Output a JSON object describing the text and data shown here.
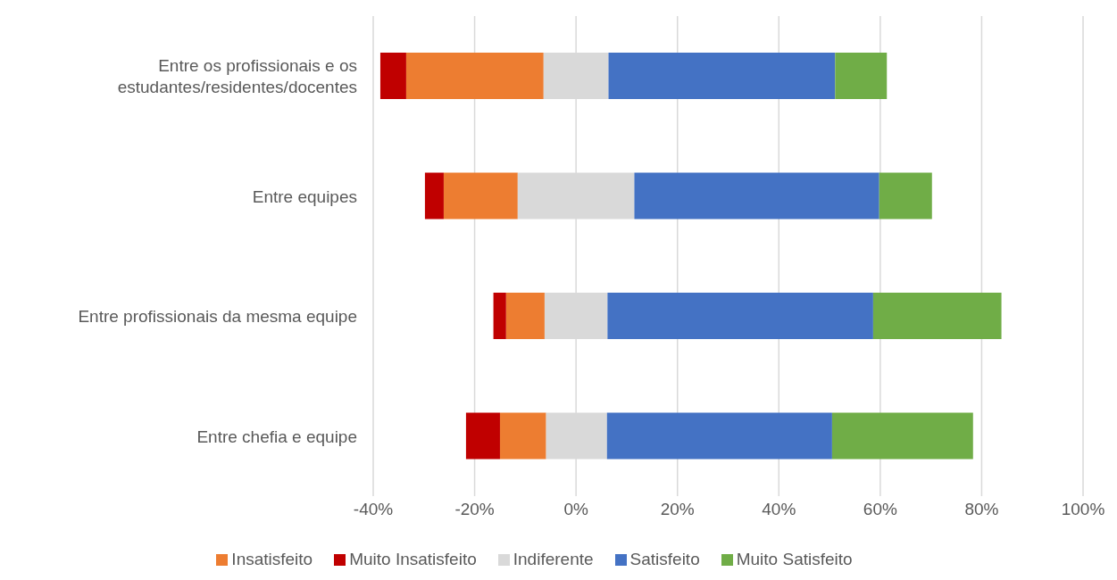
{
  "chart_data": {
    "type": "bar",
    "orientation": "horizontal",
    "categories": [
      "Entre os profissionais e os estudantes/residentes/docentes",
      "Entre equipes",
      "Entre profissionais da mesma equipe",
      "Entre chefia e equipe"
    ],
    "series": [
      {
        "name": "Insatisfeito",
        "color": "#ed7d31",
        "base": [
          -33.5,
          -26.1,
          -13.8,
          -15.0
        ],
        "values": [
          27.1,
          14.6,
          7.6,
          9.1
        ]
      },
      {
        "name": "Muito Insatisfeito",
        "color": "#c00000",
        "base": [
          -38.6,
          -29.8,
          -16.3,
          -21.7
        ],
        "values": [
          5.1,
          3.7,
          2.5,
          6.7
        ]
      },
      {
        "name": "Indiferente",
        "color": "#d9d9d9",
        "base": [
          -6.4,
          -11.5,
          -6.2,
          -5.9
        ],
        "values": [
          12.8,
          23.0,
          12.4,
          12.0
        ]
      },
      {
        "name": "Satisfeito",
        "color": "#4472c4",
        "base": [
          6.4,
          11.5,
          6.2,
          6.1
        ],
        "values": [
          44.7,
          48.3,
          52.4,
          44.4
        ]
      },
      {
        "name": "Muito Satisfeito",
        "color": "#70ad47",
        "base": [
          51.1,
          59.8,
          58.6,
          50.5
        ],
        "values": [
          10.2,
          10.4,
          25.3,
          27.8
        ]
      }
    ],
    "xlim": [
      -40,
      100
    ],
    "xticks": [
      {
        "value": -40,
        "label": "-40%"
      },
      {
        "value": -20,
        "label": "-20%"
      },
      {
        "value": 0,
        "label": "0%"
      },
      {
        "value": 20,
        "label": "20%"
      },
      {
        "value": 40,
        "label": "40%"
      },
      {
        "value": 60,
        "label": "60%"
      },
      {
        "value": 80,
        "label": "80%"
      },
      {
        "value": 100,
        "label": "100%"
      }
    ],
    "grid": "x",
    "legend": "bottom"
  }
}
